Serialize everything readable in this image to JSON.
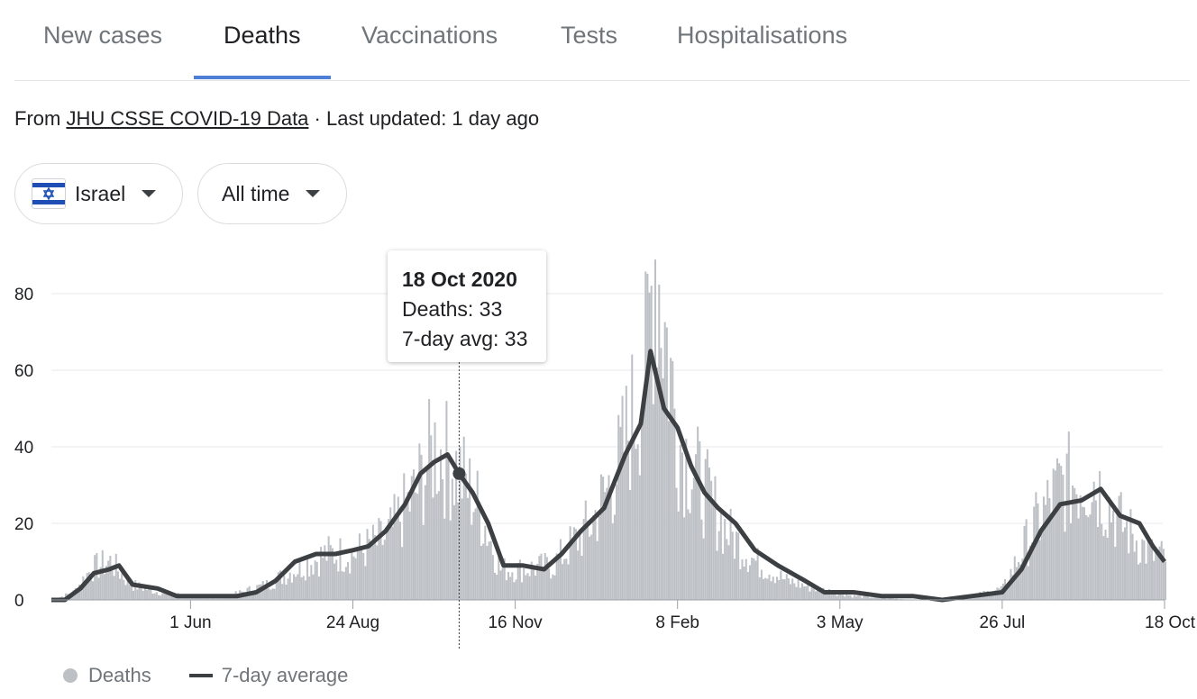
{
  "tabs": [
    {
      "label": "New cases",
      "active": false
    },
    {
      "label": "Deaths",
      "active": true
    },
    {
      "label": "Vaccinations",
      "active": false
    },
    {
      "label": "Tests",
      "active": false
    },
    {
      "label": "Hospitalisations",
      "active": false
    }
  ],
  "source": {
    "prefix": "From",
    "link_text": "JHU CSSE COVID-19 Data",
    "suffix": "· Last updated: 1 day ago"
  },
  "filters": {
    "location": {
      "label": "Israel",
      "icon": "israel-flag-icon"
    },
    "time_range": {
      "label": "All time"
    }
  },
  "tooltip": {
    "date": "18 Oct 2020",
    "deaths_line": "Deaths: 33",
    "avg_line": "7-day avg: 33"
  },
  "legend": {
    "deaths": "Deaths",
    "avg": "7-day average"
  },
  "colors": {
    "bars": "#bdc1c6",
    "avg_line": "#3c4043",
    "active_tab": "#4d7fd6",
    "grid": "#e8eaed"
  },
  "chart_data": {
    "type": "bar",
    "title": "",
    "xlabel": "",
    "ylabel": "",
    "ylim": [
      0,
      90
    ],
    "yticks": [
      0,
      20,
      40,
      60,
      80
    ],
    "grid": true,
    "legend_position": "bottom-left",
    "x_ticks": [
      {
        "label": "1 Jun",
        "date": "2020-06-01"
      },
      {
        "label": "24 Aug",
        "date": "2020-08-24"
      },
      {
        "label": "16 Nov",
        "date": "2020-11-16"
      },
      {
        "label": "8 Feb",
        "date": "2021-02-08"
      },
      {
        "label": "3 May",
        "date": "2021-05-03"
      },
      {
        "label": "26 Jul",
        "date": "2021-07-26"
      },
      {
        "label": "18 Oct",
        "date": "2021-10-18"
      }
    ],
    "x_start": "2020-03-21",
    "x_end": "2021-10-18",
    "highlight": {
      "date": "2020-10-18",
      "deaths": 33,
      "avg": 33
    },
    "series": [
      {
        "name": "Deaths",
        "kind": "bar",
        "points": [
          [
            "2020-03-21",
            0
          ],
          [
            "2020-04-01",
            2
          ],
          [
            "2020-04-10",
            8
          ],
          [
            "2020-04-20",
            10
          ],
          [
            "2020-05-01",
            4
          ],
          [
            "2020-05-15",
            2
          ],
          [
            "2020-06-01",
            1
          ],
          [
            "2020-06-20",
            1
          ],
          [
            "2020-07-10",
            4
          ],
          [
            "2020-07-25",
            8
          ],
          [
            "2020-08-10",
            12
          ],
          [
            "2020-08-24",
            12
          ],
          [
            "2020-09-10",
            16
          ],
          [
            "2020-09-25",
            28
          ],
          [
            "2020-10-05",
            40
          ],
          [
            "2020-10-18",
            33
          ],
          [
            "2020-10-28",
            24
          ],
          [
            "2020-11-08",
            8
          ],
          [
            "2020-11-20",
            8
          ],
          [
            "2020-12-05",
            9
          ],
          [
            "2020-12-25",
            20
          ],
          [
            "2021-01-08",
            35
          ],
          [
            "2021-01-22",
            60
          ],
          [
            "2021-01-27",
            92
          ],
          [
            "2021-02-08",
            42
          ],
          [
            "2021-02-20",
            30
          ],
          [
            "2021-03-05",
            18
          ],
          [
            "2021-03-20",
            10
          ],
          [
            "2021-04-05",
            5
          ],
          [
            "2021-04-20",
            3
          ],
          [
            "2021-05-10",
            1
          ],
          [
            "2021-06-10",
            0
          ],
          [
            "2021-07-10",
            1
          ],
          [
            "2021-07-26",
            3
          ],
          [
            "2021-08-10",
            18
          ],
          [
            "2021-08-25",
            30
          ],
          [
            "2021-09-10",
            32
          ],
          [
            "2021-09-25",
            20
          ],
          [
            "2021-10-10",
            12
          ],
          [
            "2021-10-18",
            11
          ]
        ]
      },
      {
        "name": "7-day average",
        "kind": "line",
        "points": [
          [
            "2020-03-21",
            0
          ],
          [
            "2020-03-28",
            0
          ],
          [
            "2020-04-05",
            3
          ],
          [
            "2020-04-12",
            7
          ],
          [
            "2020-04-20",
            8
          ],
          [
            "2020-04-25",
            9
          ],
          [
            "2020-05-02",
            4
          ],
          [
            "2020-05-15",
            3
          ],
          [
            "2020-05-25",
            1
          ],
          [
            "2020-06-10",
            1
          ],
          [
            "2020-06-25",
            1
          ],
          [
            "2020-07-05",
            2
          ],
          [
            "2020-07-15",
            5
          ],
          [
            "2020-07-25",
            10
          ],
          [
            "2020-08-05",
            12
          ],
          [
            "2020-08-15",
            12
          ],
          [
            "2020-08-24",
            13
          ],
          [
            "2020-09-01",
            14
          ],
          [
            "2020-09-10",
            18
          ],
          [
            "2020-09-20",
            25
          ],
          [
            "2020-09-28",
            33
          ],
          [
            "2020-10-05",
            36
          ],
          [
            "2020-10-12",
            38
          ],
          [
            "2020-10-18",
            33
          ],
          [
            "2020-10-25",
            28
          ],
          [
            "2020-11-02",
            20
          ],
          [
            "2020-11-10",
            9
          ],
          [
            "2020-11-20",
            9
          ],
          [
            "2020-12-01",
            8
          ],
          [
            "2020-12-10",
            12
          ],
          [
            "2020-12-20",
            18
          ],
          [
            "2021-01-01",
            24
          ],
          [
            "2021-01-12",
            38
          ],
          [
            "2021-01-20",
            46
          ],
          [
            "2021-01-25",
            65
          ],
          [
            "2021-02-01",
            50
          ],
          [
            "2021-02-08",
            45
          ],
          [
            "2021-02-15",
            35
          ],
          [
            "2021-02-22",
            28
          ],
          [
            "2021-03-01",
            24
          ],
          [
            "2021-03-10",
            20
          ],
          [
            "2021-03-20",
            13
          ],
          [
            "2021-04-01",
            9
          ],
          [
            "2021-04-15",
            5
          ],
          [
            "2021-04-25",
            2
          ],
          [
            "2021-05-10",
            2
          ],
          [
            "2021-05-25",
            1
          ],
          [
            "2021-06-10",
            1
          ],
          [
            "2021-06-25",
            0
          ],
          [
            "2021-07-10",
            1
          ],
          [
            "2021-07-26",
            2
          ],
          [
            "2021-08-05",
            8
          ],
          [
            "2021-08-15",
            18
          ],
          [
            "2021-08-25",
            25
          ],
          [
            "2021-09-05",
            26
          ],
          [
            "2021-09-15",
            29
          ],
          [
            "2021-09-25",
            22
          ],
          [
            "2021-10-05",
            20
          ],
          [
            "2021-10-12",
            14
          ],
          [
            "2021-10-18",
            10
          ]
        ]
      }
    ]
  }
}
